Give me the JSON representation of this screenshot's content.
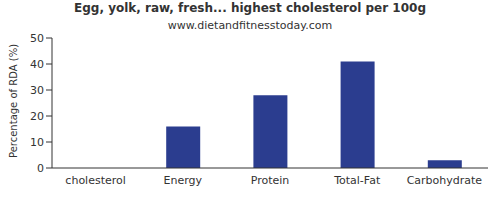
{
  "chart_data": {
    "type": "bar",
    "title": "Egg, yolk, raw, fresh... highest cholesterol per 100g",
    "subtitle": "www.dietandfitnesstoday.com",
    "y_label": "Percentage of RDA (%)",
    "categories": [
      "cholesterol",
      "Energy",
      "Protein",
      "Total-Fat",
      "Carbohydrate"
    ],
    "values": [
      0,
      16,
      28,
      41,
      3
    ],
    "color": "#2b3d8f",
    "ylim": [
      0,
      50
    ],
    "yticks": [
      0,
      10,
      20,
      30,
      40,
      50
    ],
    "grid": false
  }
}
